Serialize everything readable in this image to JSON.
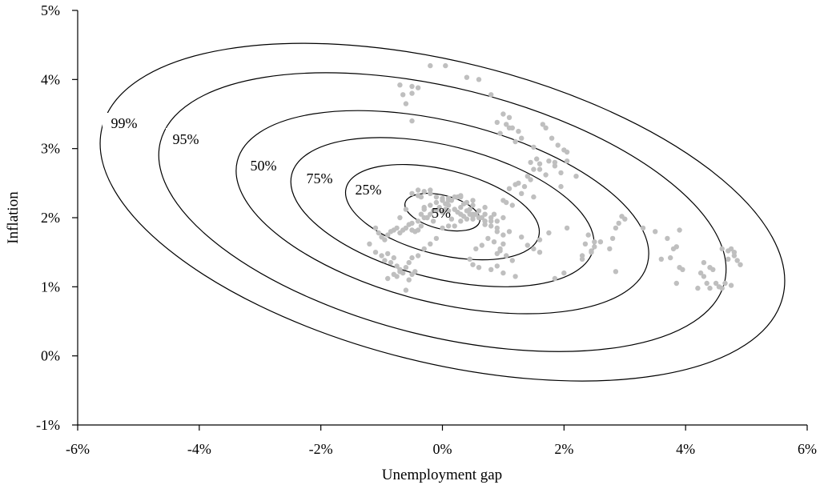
{
  "chart_data": {
    "type": "scatter",
    "title": "",
    "xlabel": "Unemployment gap",
    "ylabel": "Inflation",
    "xlim": [
      -6,
      6
    ],
    "ylim": [
      -1,
      5
    ],
    "x_ticks": [
      -6,
      -4,
      -2,
      0,
      2,
      4,
      6
    ],
    "y_ticks": [
      -1,
      0,
      1,
      2,
      3,
      4,
      5
    ],
    "x_tick_labels": [
      "-6%",
      "-4%",
      "-2%",
      "0%",
      "2%",
      "4%",
      "6%"
    ],
    "y_tick_labels": [
      "-1%",
      "0%",
      "1%",
      "2%",
      "3%",
      "4%",
      "5%"
    ],
    "grid": false,
    "legend": "none",
    "colors": {
      "points": "#bfbfbf",
      "contours": "#000000",
      "axes": "#000000"
    },
    "contours": {
      "center": [
        0,
        2.08
      ],
      "labels": [
        "5%",
        "25%",
        "50%",
        "75%",
        "95%",
        "99%"
      ],
      "levels": [
        0.05,
        0.25,
        0.5,
        0.75,
        0.95,
        0.99
      ]
    },
    "series": [
      {
        "x": [
          -0.2,
          0.05,
          0.4,
          0.6,
          0.8,
          -0.7,
          -0.5,
          -0.4,
          -0.65,
          -0.5,
          -0.6,
          -0.5,
          1.0,
          1.1,
          1.05,
          1.15,
          1.25,
          0.9,
          1.3,
          0.95,
          1.1,
          1.2,
          1.5,
          1.65,
          1.7,
          1.8,
          1.75,
          1.55,
          1.45,
          1.6,
          1.9,
          2.0,
          2.05,
          1.85,
          1.95,
          1.6,
          1.7,
          1.4,
          1.5,
          1.45,
          1.35,
          1.25,
          1.1,
          1.2,
          1.3,
          1.5,
          1.05,
          1.15,
          1.0,
          2.05,
          1.85,
          2.2,
          1.95,
          1.0,
          0.95,
          0.9,
          1.6,
          2.3,
          2.45,
          2.8,
          2.9,
          2.95,
          3.0,
          2.85,
          3.3,
          3.5,
          3.7,
          3.9,
          3.85,
          3.8,
          3.75,
          3.9,
          3.95,
          3.6,
          3.85,
          4.3,
          4.25,
          4.4,
          4.35,
          4.2,
          4.45,
          4.3,
          4.4,
          4.6,
          4.7,
          4.75,
          4.8,
          4.85,
          4.9,
          4.75,
          4.55,
          4.6,
          4.65,
          4.7,
          4.5,
          4.8,
          2.4,
          2.35,
          2.5,
          2.45,
          2.3,
          2.5,
          2.75,
          2.6,
          2.85,
          2.05,
          2.0,
          1.85,
          1.75,
          -1.2,
          -1.1,
          -1.05,
          -1.0,
          -0.95,
          -0.9,
          -0.85,
          -0.8,
          -0.75,
          -0.7,
          -0.65,
          -0.6,
          -0.55,
          -0.5,
          -0.45,
          -0.4,
          -0.35,
          -0.8,
          -0.9,
          -0.85,
          -0.75,
          -0.7,
          -0.6,
          -0.55,
          -0.5,
          -1.0,
          -1.1,
          -0.95,
          -0.8,
          -0.9,
          -0.65,
          -0.7,
          -0.75,
          -0.55,
          -0.6,
          -0.5,
          -0.45,
          -0.4,
          -0.3,
          -0.2,
          -0.1,
          0.0,
          0.1,
          -0.25,
          -0.35,
          -0.15,
          -0.05,
          0.05,
          0.15,
          0.25,
          0.35,
          0.45,
          0.55,
          0.65,
          -0.3,
          -0.2,
          -0.1,
          0.0,
          0.1,
          0.2,
          0.3,
          0.4,
          0.5,
          0.6,
          0.7,
          0.8,
          0.9,
          -0.5,
          -0.4,
          -0.3,
          -0.2,
          -0.1,
          0.0,
          0.1,
          0.2,
          0.3,
          0.4,
          0.5,
          0.6,
          0.7,
          0.8,
          -0.4,
          -0.3,
          -0.2,
          -0.1,
          0.0,
          0.1,
          0.2,
          0.3,
          0.5,
          0.7,
          0.9,
          1.1,
          0.2,
          0.3,
          0.4,
          0.5,
          0.6,
          0.7,
          0.8,
          0.9,
          1.0,
          0.55,
          0.65,
          0.75,
          0.85,
          0.95,
          1.05,
          1.15,
          0.45,
          0.5,
          0.6,
          0.8,
          0.9,
          1.0,
          1.2,
          -0.5,
          -0.4,
          -0.2,
          0.0,
          0.1,
          -0.6,
          -0.7,
          -0.3,
          -0.35,
          0.25,
          0.35,
          0.15,
          0.45,
          -0.15,
          -0.25,
          0.05,
          0.3,
          0.5,
          0.7,
          0.85,
          1.0,
          1.3,
          1.4,
          1.5,
          1.6
        ],
        "y": [
          4.2,
          4.2,
          4.03,
          4.0,
          3.78,
          3.92,
          3.9,
          3.88,
          3.78,
          3.8,
          3.65,
          3.4,
          3.5,
          3.45,
          3.35,
          3.3,
          3.25,
          3.38,
          3.15,
          3.22,
          3.3,
          3.1,
          3.02,
          3.35,
          3.3,
          3.15,
          2.82,
          2.85,
          2.8,
          2.78,
          3.05,
          2.98,
          2.95,
          2.75,
          2.65,
          2.7,
          2.62,
          2.6,
          2.7,
          2.55,
          2.45,
          2.5,
          2.42,
          2.48,
          2.35,
          2.3,
          2.22,
          2.18,
          2.25,
          2.82,
          2.8,
          2.6,
          2.45,
          1.62,
          1.55,
          1.48,
          1.68,
          1.45,
          1.52,
          1.7,
          1.92,
          2.02,
          1.98,
          1.85,
          1.85,
          1.8,
          1.7,
          1.82,
          1.58,
          1.55,
          1.42,
          1.28,
          1.25,
          1.4,
          1.05,
          1.35,
          1.2,
          1.28,
          1.05,
          0.98,
          1.25,
          1.15,
          0.98,
          1.55,
          1.52,
          1.55,
          1.5,
          1.38,
          1.32,
          1.02,
          1.0,
          0.98,
          1.05,
          1.4,
          1.05,
          1.45,
          1.75,
          1.62,
          1.65,
          1.5,
          1.4,
          1.58,
          1.55,
          1.65,
          1.22,
          1.85,
          1.2,
          1.12,
          1.78,
          1.62,
          1.85,
          1.78,
          1.72,
          1.68,
          1.75,
          1.8,
          1.82,
          1.85,
          1.78,
          1.82,
          1.85,
          1.9,
          1.82,
          1.8,
          1.82,
          1.88,
          1.42,
          1.48,
          1.35,
          1.3,
          1.22,
          1.28,
          1.35,
          1.42,
          1.45,
          1.5,
          1.38,
          1.18,
          1.12,
          1.2,
          1.25,
          1.15,
          1.1,
          0.95,
          1.18,
          1.22,
          1.45,
          1.55,
          1.62,
          1.7,
          1.85,
          1.88,
          2.0,
          2.05,
          2.1,
          2.15,
          2.2,
          2.25,
          2.3,
          2.2,
          2.12,
          2.05,
          2.0,
          2.12,
          2.18,
          2.22,
          2.25,
          2.28,
          2.3,
          2.32,
          2.22,
          2.18,
          2.1,
          2.05,
          2.0,
          1.95,
          1.92,
          1.95,
          2.0,
          2.05,
          2.1,
          2.08,
          2.1,
          2.12,
          2.15,
          2.1,
          2.05,
          2.0,
          1.95,
          1.95,
          2.4,
          2.38,
          2.35,
          2.3,
          2.25,
          2.18,
          2.12,
          2.05,
          1.98,
          1.9,
          1.85,
          1.8,
          1.88,
          1.95,
          1.98,
          2.02,
          2.0,
          1.95,
          1.88,
          1.8,
          1.75,
          1.55,
          1.6,
          1.7,
          1.65,
          1.52,
          1.45,
          1.38,
          1.4,
          1.32,
          1.28,
          1.25,
          1.3,
          1.2,
          1.15,
          2.35,
          2.32,
          2.4,
          2.28,
          2.25,
          2.12,
          2.0,
          2.15,
          2.3,
          2.08,
          2.02,
          1.98,
          2.05,
          1.95,
          2.0,
          2.12,
          2.3,
          2.25,
          2.15,
          2.05,
          2.0,
          1.72,
          1.6,
          1.55,
          1.5
        ]
      }
    ]
  }
}
